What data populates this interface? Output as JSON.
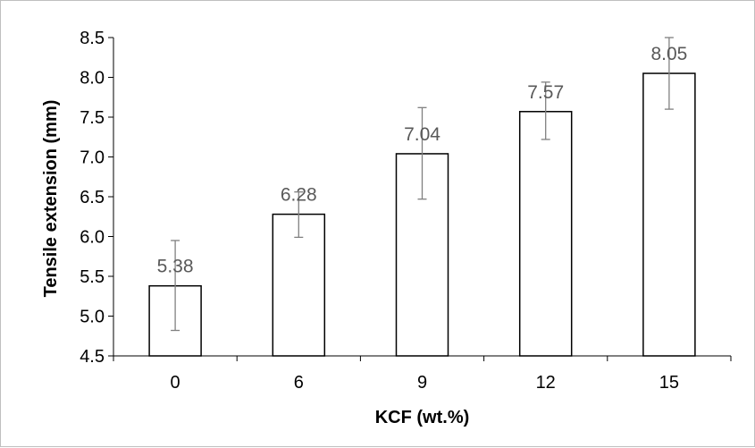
{
  "chart_data": {
    "type": "bar",
    "categories": [
      "0",
      "6",
      "9",
      "12",
      "15"
    ],
    "values": [
      5.38,
      6.28,
      7.04,
      7.57,
      8.05
    ],
    "data_labels": [
      "5.38",
      "6.28",
      "7.04",
      "7.57",
      "8.05"
    ],
    "error_bars": [
      {
        "low": 4.82,
        "high": 5.95
      },
      {
        "low": 5.99,
        "high": 6.56
      },
      {
        "low": 6.47,
        "high": 7.62
      },
      {
        "low": 7.22,
        "high": 7.94
      },
      {
        "low": 7.6,
        "high": 8.5
      }
    ],
    "xlabel": "KCF (wt.%)",
    "ylabel": "Tensile extension (mm)",
    "ylim": [
      4.5,
      8.5
    ],
    "y_ticks": [
      "4.5",
      "5.0",
      "5.5",
      "6.0",
      "6.5",
      "7.0",
      "7.5",
      "8.0",
      "8.5"
    ],
    "grid": false,
    "legend": "none",
    "colors": {
      "bar_fill": "#ffffff",
      "bar_edge": "#000000",
      "error_bar": "#808080",
      "data_label": "#595959"
    }
  }
}
